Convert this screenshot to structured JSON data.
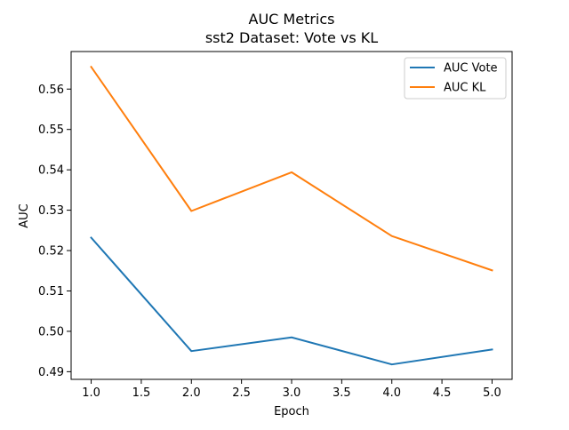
{
  "chart_data": {
    "type": "line",
    "title": "AUC Metrics",
    "subtitle": "sst2 Dataset: Vote vs KL",
    "xlabel": "Epoch",
    "ylabel": "AUC",
    "x": [
      1.0,
      2.0,
      3.0,
      4.0,
      5.0
    ],
    "series": [
      {
        "name": "AUC Vote",
        "color": "#1f77b4",
        "values": [
          0.5232,
          0.4951,
          0.4985,
          0.4918,
          0.4955
        ]
      },
      {
        "name": "AUC KL",
        "color": "#ff7f0e",
        "values": [
          0.5655,
          0.5298,
          0.5394,
          0.5236,
          0.5151
        ]
      }
    ],
    "xlim": [
      0.8,
      5.2
    ],
    "ylim": [
      0.4881,
      0.5693
    ],
    "x_ticks": [
      "1.0",
      "1.5",
      "2.0",
      "2.5",
      "3.0",
      "3.5",
      "4.0",
      "4.5",
      "5.0"
    ],
    "y_ticks": [
      "0.49",
      "0.50",
      "0.51",
      "0.52",
      "0.53",
      "0.54",
      "0.55",
      "0.56"
    ],
    "legend_position": "top-right",
    "grid": false
  }
}
